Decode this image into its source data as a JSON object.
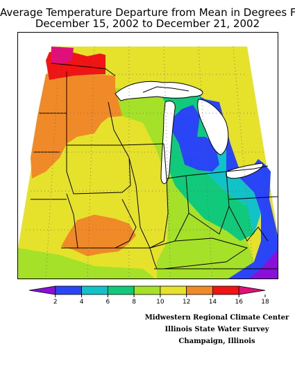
{
  "title": {
    "line1": "Average Temperature Departure from Mean in Degrees F",
    "line2": "December 15, 2002 to December 21, 2002"
  },
  "legend": {
    "ticks": [
      "2",
      "4",
      "6",
      "8",
      "10",
      "12",
      "14",
      "16",
      "18"
    ],
    "colors": [
      "#8a0fd8",
      "#2a45f5",
      "#11c3c8",
      "#11c97a",
      "#a6e12a",
      "#e6e12a",
      "#f08a28",
      "#f01414",
      "#e0107a"
    ]
  },
  "map_colors": {
    "violet": "#8a0fd8",
    "blue": "#2a45f5",
    "cyan": "#11c3c8",
    "teal": "#11c97a",
    "lime": "#a6e12a",
    "yellow": "#e6e12a",
    "orange": "#f08a28",
    "red": "#f01414",
    "magenta": "#e0107a"
  },
  "credits": {
    "line1": "Midwestern Regional Climate Center",
    "line2": "Illinois State Water Survey",
    "line3": "Champaign, Illinois"
  }
}
